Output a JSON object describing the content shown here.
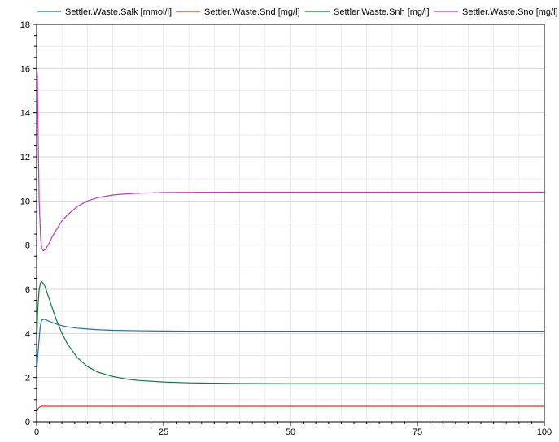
{
  "chart_data": {
    "type": "line",
    "title": "",
    "xlabel": "",
    "ylabel": "",
    "xlim": [
      0,
      100
    ],
    "ylim": [
      0,
      18
    ],
    "xticks": [
      0,
      25,
      50,
      75,
      100
    ],
    "yticks": [
      0,
      2,
      4,
      6,
      8,
      10,
      12,
      14,
      16,
      18
    ],
    "grid": true,
    "legend_position": "top",
    "series": [
      {
        "name": "Settler.Waste.Salk [mmol/l]",
        "color": "#1f6fa8",
        "x": [
          0,
          0.3,
          0.7,
          1,
          1.5,
          2,
          3,
          4,
          5,
          6,
          8,
          10,
          12,
          15,
          20,
          25,
          30,
          40,
          50,
          60,
          70,
          80,
          90,
          100
        ],
        "y": [
          2.2,
          3.2,
          4.3,
          4.6,
          4.65,
          4.6,
          4.5,
          4.42,
          4.35,
          4.3,
          4.24,
          4.2,
          4.17,
          4.14,
          4.12,
          4.11,
          4.1,
          4.1,
          4.1,
          4.1,
          4.1,
          4.1,
          4.1,
          4.1
        ]
      },
      {
        "name": "Settler.Waste.Snd [mg/l]",
        "color": "#d9352b",
        "x": [
          0,
          0.2,
          0.5,
          1,
          2,
          5,
          10,
          25,
          50,
          75,
          100
        ],
        "y": [
          0.4,
          0.55,
          0.65,
          0.7,
          0.7,
          0.7,
          0.7,
          0.7,
          0.7,
          0.7,
          0.7
        ]
      },
      {
        "name": "Settler.Waste.Snh [mg/l]",
        "color": "#0f7a3a",
        "x": [
          0,
          0.2,
          0.5,
          0.8,
          1,
          1.2,
          1.5,
          2,
          3,
          4,
          5,
          6,
          8,
          10,
          12,
          15,
          18,
          20,
          25,
          30,
          40,
          50,
          60,
          70,
          80,
          90,
          100
        ],
        "y": [
          3.2,
          5.0,
          6.0,
          6.3,
          6.35,
          6.3,
          6.2,
          5.9,
          5.2,
          4.55,
          4.0,
          3.55,
          2.9,
          2.5,
          2.25,
          2.05,
          1.92,
          1.87,
          1.8,
          1.76,
          1.73,
          1.72,
          1.72,
          1.72,
          1.72,
          1.72,
          1.72
        ]
      },
      {
        "name": "Settler.Waste.Sno [mg/l]",
        "color": "#c03ab5",
        "x": [
          0,
          0.15,
          0.3,
          0.5,
          0.8,
          1,
          1.3,
          1.7,
          2,
          2.5,
          3,
          4,
          5,
          6,
          8,
          10,
          12,
          15,
          18,
          20,
          25,
          30,
          40,
          50,
          60,
          70,
          80,
          90,
          100
        ],
        "y": [
          16.1,
          15.7,
          13.0,
          10.0,
          8.3,
          7.85,
          7.75,
          7.8,
          7.9,
          8.1,
          8.35,
          8.75,
          9.1,
          9.35,
          9.75,
          10.0,
          10.15,
          10.27,
          10.33,
          10.35,
          10.38,
          10.39,
          10.4,
          10.4,
          10.4,
          10.4,
          10.4,
          10.4,
          10.4
        ]
      }
    ]
  }
}
